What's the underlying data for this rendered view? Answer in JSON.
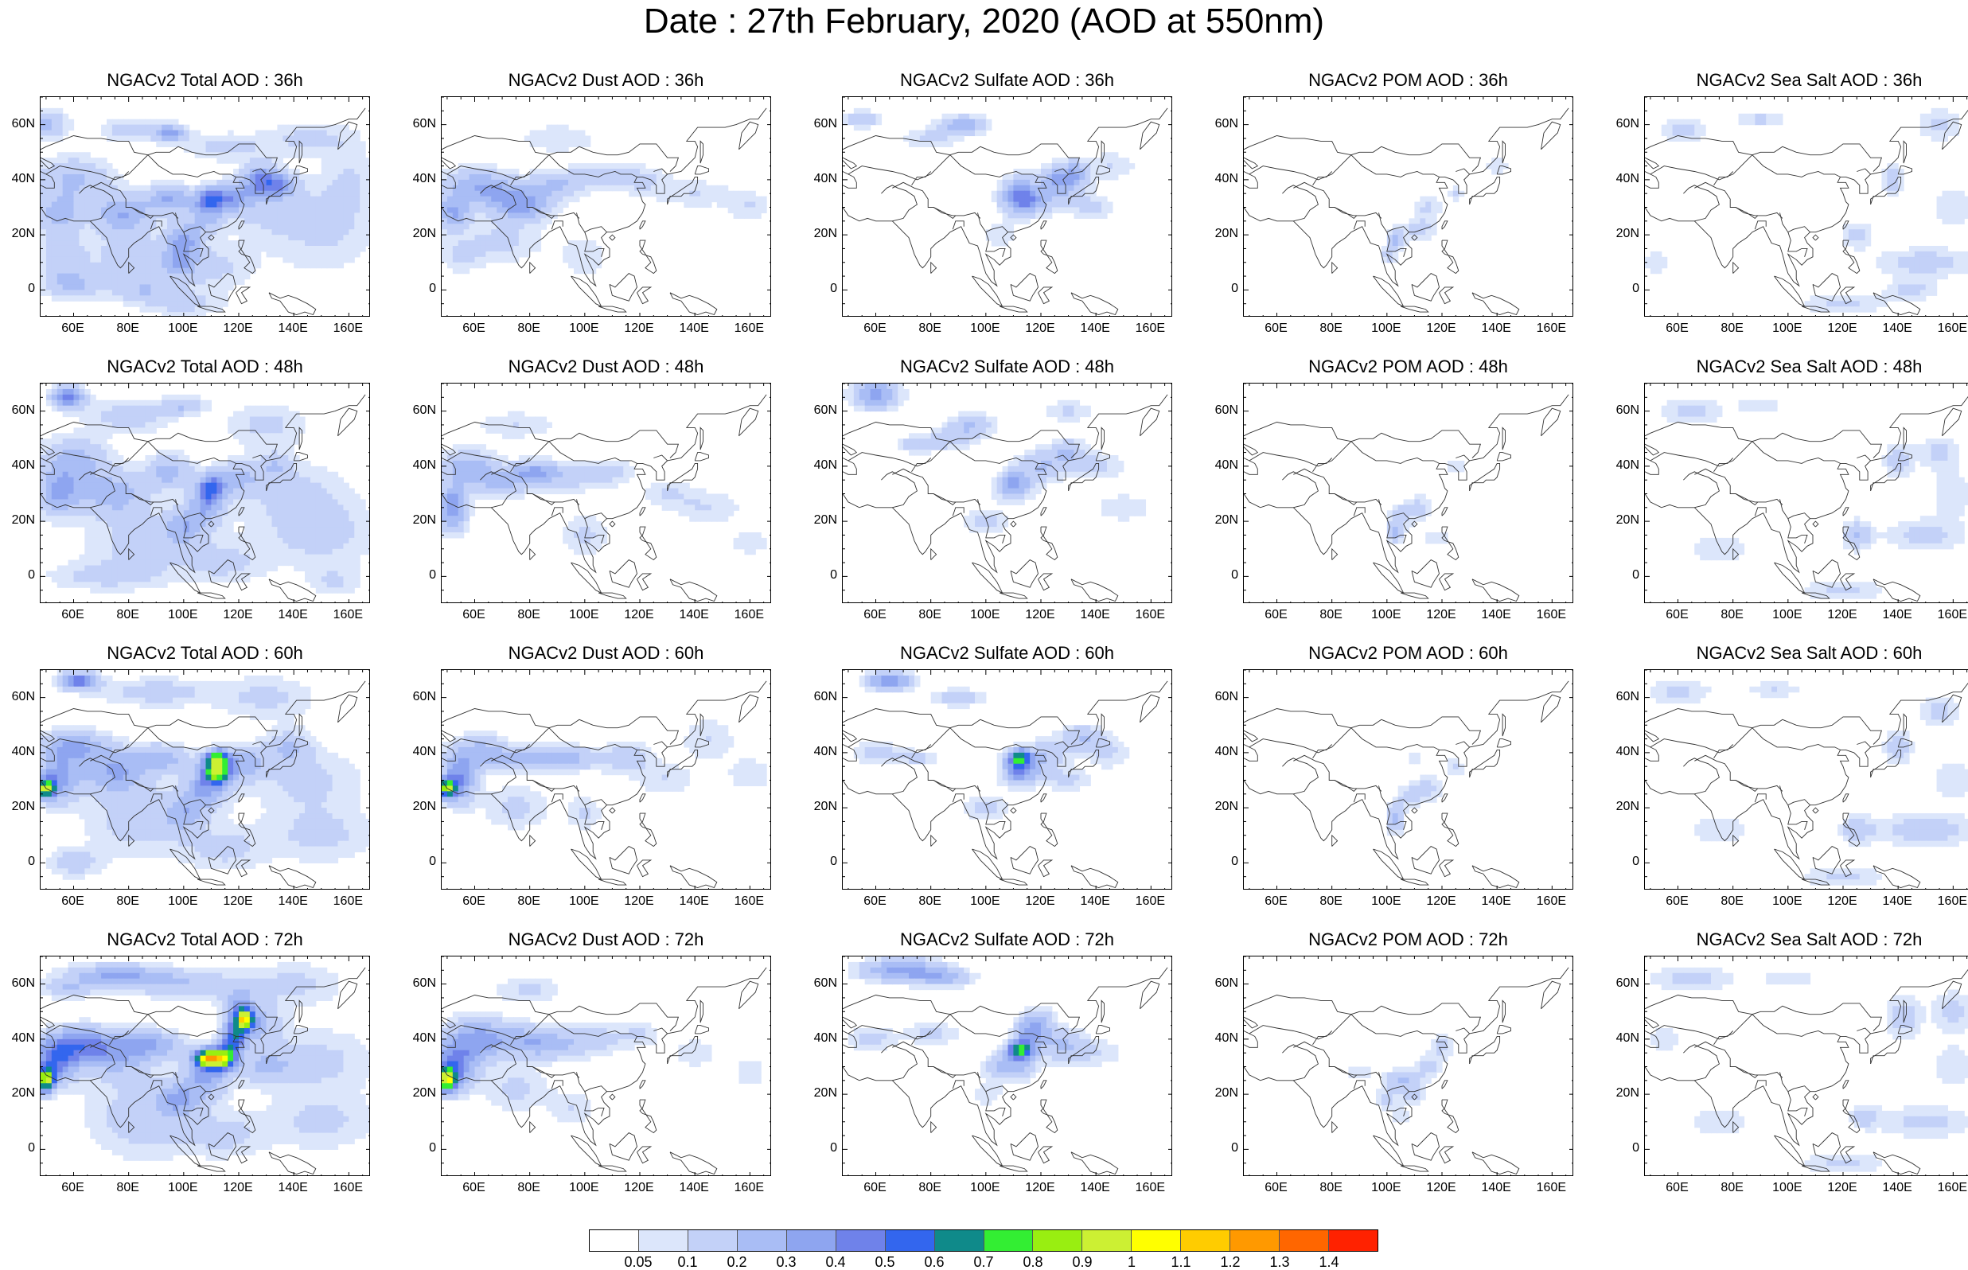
{
  "title": "Date : 27th February, 2020 (AOD at 550nm)",
  "y_ticks": [
    "60N",
    "40N",
    "20N",
    "0"
  ],
  "x_ticks": [
    "60E",
    "80E",
    "100E",
    "120E",
    "140E",
    "160E"
  ],
  "panels": [
    {
      "title": "NGACv2 Total AOD : 36h",
      "species": "total",
      "hour": 36
    },
    {
      "title": "NGACv2 Dust AOD : 36h",
      "species": "dust",
      "hour": 36
    },
    {
      "title": "NGACv2 Sulfate AOD : 36h",
      "species": "sulfate",
      "hour": 36
    },
    {
      "title": "NGACv2 POM AOD : 36h",
      "species": "pom",
      "hour": 36
    },
    {
      "title": "NGACv2 Sea Salt AOD : 36h",
      "species": "seasalt",
      "hour": 36
    },
    {
      "title": "NGACv2 Total AOD : 48h",
      "species": "total",
      "hour": 48
    },
    {
      "title": "NGACv2 Dust AOD : 48h",
      "species": "dust",
      "hour": 48
    },
    {
      "title": "NGACv2 Sulfate AOD : 48h",
      "species": "sulfate",
      "hour": 48
    },
    {
      "title": "NGACv2 POM AOD : 48h",
      "species": "pom",
      "hour": 48
    },
    {
      "title": "NGACv2 Sea Salt AOD : 48h",
      "species": "seasalt",
      "hour": 48
    },
    {
      "title": "NGACv2 Total AOD : 60h",
      "species": "total",
      "hour": 60
    },
    {
      "title": "NGACv2 Dust AOD : 60h",
      "species": "dust",
      "hour": 60
    },
    {
      "title": "NGACv2 Sulfate AOD : 60h",
      "species": "sulfate",
      "hour": 60
    },
    {
      "title": "NGACv2 POM AOD : 60h",
      "species": "pom",
      "hour": 60
    },
    {
      "title": "NGACv2 Sea Salt AOD : 60h",
      "species": "seasalt",
      "hour": 60
    },
    {
      "title": "NGACv2 Total AOD : 72h",
      "species": "total",
      "hour": 72
    },
    {
      "title": "NGACv2 Dust AOD : 72h",
      "species": "dust",
      "hour": 72
    },
    {
      "title": "NGACv2 Sulfate AOD : 72h",
      "species": "sulfate",
      "hour": 72
    },
    {
      "title": "NGACv2 POM AOD : 72h",
      "species": "pom",
      "hour": 72
    },
    {
      "title": "NGACv2 Sea Salt  AOD : 72h",
      "species": "seasalt",
      "hour": 72
    }
  ],
  "colorbar": {
    "labels": [
      "0.05",
      "0.1",
      "0.2",
      "0.3",
      "0.4",
      "0.5",
      "0.6",
      "0.7",
      "0.8",
      "0.9",
      "1",
      "1.1",
      "1.2",
      "1.3",
      "1.4"
    ],
    "colors": [
      "#ffffff",
      "#dce6fb",
      "#c3d1f8",
      "#a9bdf5",
      "#8ea5f0",
      "#6f82ea",
      "#3366ee",
      "#0f8a8a",
      "#33ee33",
      "#99ee11",
      "#ccf033",
      "#ffff00",
      "#ffcc00",
      "#ff9900",
      "#ff6600",
      "#ff2200"
    ]
  }
}
